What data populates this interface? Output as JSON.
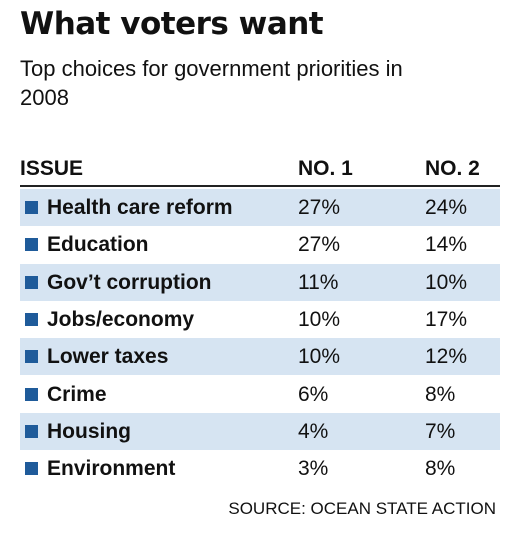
{
  "header": {
    "title": "What voters want",
    "subtitle": "Top choices for government priorities in 2008"
  },
  "table": {
    "columns": [
      "ISSUE",
      "NO. 1",
      "NO. 2"
    ],
    "rows": [
      [
        "Health care reform",
        "27%",
        "24%"
      ],
      [
        "Education",
        "27%",
        "14%"
      ],
      [
        "Gov’t corruption",
        "11%",
        "10%"
      ],
      [
        "Jobs/economy",
        "10%",
        "17%"
      ],
      [
        "Lower taxes",
        "10%",
        "12%"
      ],
      [
        "Crime",
        "6%",
        "8%"
      ],
      [
        "Housing",
        "4%",
        "7%"
      ],
      [
        "Environment",
        "3%",
        "8%"
      ]
    ]
  },
  "footer": {
    "source": "SOURCE: OCEAN STATE ACTION"
  }
}
